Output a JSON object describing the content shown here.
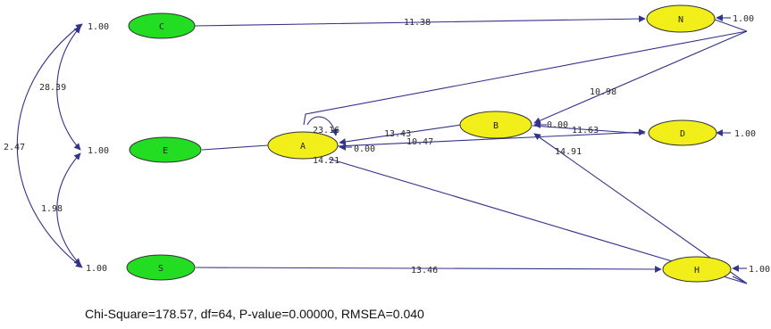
{
  "diagram": {
    "colors": {
      "latent_fill": "#22dd22",
      "observed_fill": "#f2ee1a",
      "edge": "#33338a",
      "node_stroke": "#333333"
    },
    "nodes": {
      "C": "C",
      "E": "E",
      "S": "S",
      "N": "N",
      "B": "B",
      "A": "A",
      "D": "D",
      "H": "H"
    },
    "variances": {
      "C": "1.00",
      "E": "1.00",
      "S": "1.00",
      "N": "1.00",
      "D": "1.00",
      "H": "1.00",
      "B": "0.00",
      "A": "0.00"
    },
    "covariances": {
      "C_E": "28.39",
      "C_S": "2.47",
      "E_S": "1.98"
    },
    "paths": {
      "C_N": "11.38",
      "N_B": "10.98",
      "B_A": "13.43",
      "A_D": "10.47",
      "B_D": "11.63",
      "A_self": "23.16",
      "A_H": "14.21",
      "H_B": "14.91",
      "S_H": "13.46"
    }
  },
  "footer": {
    "fit": "Chi-Square=178.57, df=64, P-value=0.00000, RMSEA=0.040"
  }
}
